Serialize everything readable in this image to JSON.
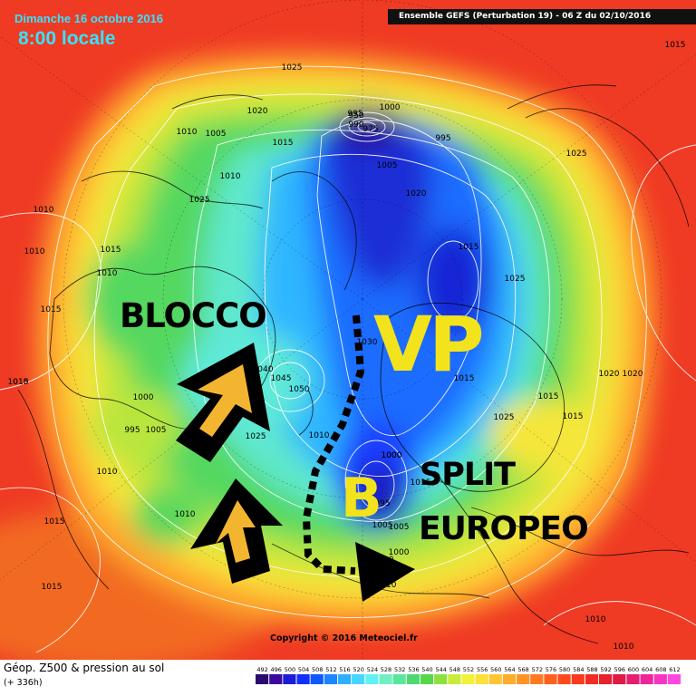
{
  "header": {
    "date": "Dimanche 16 octobre 2016",
    "time": "8:00 locale",
    "source": "Ensemble GEFS  (Perturbation 19)  -  06 Z du 02/10/2016"
  },
  "annotations": {
    "blocco": "BLOCCO",
    "vp": "VP",
    "b": "B",
    "split": "SPLIT",
    "europeo": "EUROPEO"
  },
  "pressure_labels": [
    "1025",
    "1020",
    "1010",
    "1005",
    "1015",
    "1010",
    "1025",
    "1010",
    "1015",
    "1010",
    "1015",
    "1015",
    "1010",
    "1010",
    "1015",
    "1015",
    "1000",
    "995",
    "1005",
    "1050",
    "1045",
    "1040",
    "1025",
    "1010",
    "1000",
    "1010",
    "1010",
    "1015",
    "995",
    "1000",
    "975",
    "950",
    "990",
    "1005",
    "1020",
    "995",
    "1015",
    "1025",
    "1025",
    "1005",
    "1030",
    "1015",
    "1020",
    "1020",
    "1015",
    "1025",
    "1015",
    "1000",
    "1005",
    "1010",
    "1000",
    "995",
    "1010",
    "1010",
    "1015",
    "1010"
  ],
  "copyright": "Copyright © 2016 Meteociel.fr",
  "legend": {
    "title": "Géop. Z500 & pression au sol",
    "subtitle": "(+ 336h)",
    "scale_values": [
      "492",
      "496",
      "500",
      "504",
      "508",
      "512",
      "516",
      "520",
      "524",
      "528",
      "532",
      "536",
      "540",
      "544",
      "548",
      "552",
      "556",
      "560",
      "564",
      "568",
      "572",
      "576",
      "580",
      "584",
      "588",
      "592",
      "596",
      "600",
      "604",
      "608",
      "612"
    ],
    "scale_colors": [
      "#2b0a6e",
      "#3a0aa0",
      "#1b1bd8",
      "#1030ff",
      "#0f58ff",
      "#1b86ff",
      "#2fb0ff",
      "#46d6ff",
      "#62f0f4",
      "#6ff0c4",
      "#59e79b",
      "#4fd872",
      "#57d64a",
      "#8fe03c",
      "#c8ec3a",
      "#f2f13a",
      "#ffe03a",
      "#ffc533",
      "#ffac2b",
      "#ff9324",
      "#ff7a20",
      "#ff611c",
      "#ff4a1c",
      "#f93a1e",
      "#ef2d24",
      "#e6202c",
      "#e01a44",
      "#e61d70",
      "#f02598",
      "#f835c0",
      "#ff48e2"
    ]
  }
}
